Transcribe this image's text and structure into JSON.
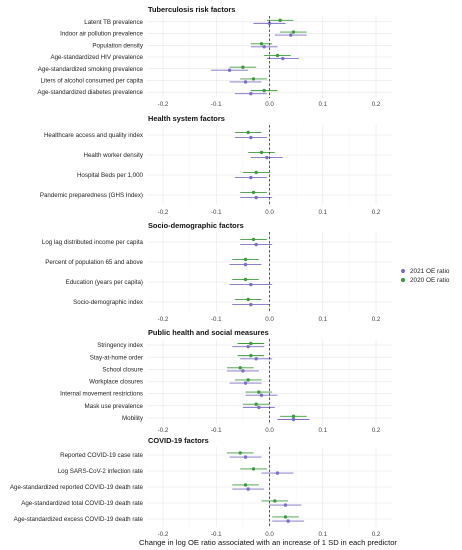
{
  "colors": {
    "2021": "#7b6fc2",
    "2020": "#3d9a3d"
  },
  "chart_data": {
    "type": "forest",
    "xlabel": "Change in log OE ratio associated with an increase of 1 SD in each predictor",
    "xlim": [
      -0.23,
      0.23
    ],
    "xticks": [
      -0.2,
      -0.1,
      0.0,
      0.1,
      0.2
    ],
    "xtick_labels": [
      "-0.2",
      "-0.1",
      "0.0",
      "0.1",
      "0.2"
    ],
    "reference_line": 0,
    "legend": {
      "position": "right",
      "entries": [
        {
          "key": "2021",
          "label": "2021 OE ratio"
        },
        {
          "key": "2020",
          "label": "2020 OE ratio"
        }
      ]
    },
    "panels": [
      {
        "title": "Tuberculosis risk factors",
        "rows": [
          {
            "label": "Latent TB prevalence",
            "y2020": {
              "est": 0.02,
              "lo": -0.005,
              "hi": 0.045
            },
            "y2021": {
              "est": 0.0,
              "lo": -0.03,
              "hi": 0.03
            }
          },
          {
            "label": "Indoor air pollution prevalence",
            "y2020": {
              "est": 0.045,
              "lo": 0.02,
              "hi": 0.07
            },
            "y2021": {
              "est": 0.04,
              "lo": 0.01,
              "hi": 0.07
            }
          },
          {
            "label": "Population density",
            "y2020": {
              "est": -0.015,
              "lo": -0.035,
              "hi": 0.005
            },
            "y2021": {
              "est": -0.01,
              "lo": -0.035,
              "hi": 0.015
            }
          },
          {
            "label": "Age-standardized HIV prevalence",
            "y2020": {
              "est": 0.015,
              "lo": -0.01,
              "hi": 0.04
            },
            "y2021": {
              "est": 0.025,
              "lo": -0.005,
              "hi": 0.055
            }
          },
          {
            "label": "Age-standardized smoking prevalence",
            "y2020": {
              "est": -0.05,
              "lo": -0.075,
              "hi": -0.025
            },
            "y2021": {
              "est": -0.075,
              "lo": -0.11,
              "hi": -0.04
            }
          },
          {
            "label": "Liters of alcohol consumed per capita",
            "y2020": {
              "est": -0.03,
              "lo": -0.055,
              "hi": -0.005
            },
            "y2021": {
              "est": -0.045,
              "lo": -0.075,
              "hi": -0.015
            }
          },
          {
            "label": "Age-standardized diabetes prevalence",
            "y2020": {
              "est": -0.01,
              "lo": -0.035,
              "hi": 0.015
            },
            "y2021": {
              "est": -0.035,
              "lo": -0.065,
              "hi": -0.005
            }
          }
        ]
      },
      {
        "title": "Health system factors",
        "rows": [
          {
            "label": "Healthcare access and quality index",
            "y2020": {
              "est": -0.04,
              "lo": -0.065,
              "hi": -0.015
            },
            "y2021": {
              "est": -0.035,
              "lo": -0.065,
              "hi": -0.005
            }
          },
          {
            "label": "Health worker density",
            "y2020": {
              "est": -0.015,
              "lo": -0.04,
              "hi": 0.01
            },
            "y2021": {
              "est": -0.005,
              "lo": -0.035,
              "hi": 0.025
            }
          },
          {
            "label": "Hospital Beds per 1,000",
            "y2020": {
              "est": -0.025,
              "lo": -0.05,
              "hi": 0.0
            },
            "y2021": {
              "est": -0.035,
              "lo": -0.065,
              "hi": -0.005
            }
          },
          {
            "label": "Pandemic preparedness (GHS Index)",
            "y2020": {
              "est": -0.03,
              "lo": -0.055,
              "hi": -0.005
            },
            "y2021": {
              "est": -0.025,
              "lo": -0.055,
              "hi": 0.005
            }
          }
        ]
      },
      {
        "title": "Socio-demographic factors",
        "rows": [
          {
            "label": "Log lag distributed income per capita",
            "y2020": {
              "est": -0.03,
              "lo": -0.055,
              "hi": -0.005
            },
            "y2021": {
              "est": -0.025,
              "lo": -0.055,
              "hi": 0.005
            }
          },
          {
            "label": "Percent of population 65 and above",
            "y2020": {
              "est": -0.045,
              "lo": -0.07,
              "hi": -0.02
            },
            "y2021": {
              "est": -0.045,
              "lo": -0.075,
              "hi": -0.015
            }
          },
          {
            "label": "Education (years per capita)",
            "y2020": {
              "est": -0.045,
              "lo": -0.07,
              "hi": -0.02
            },
            "y2021": {
              "est": -0.035,
              "lo": -0.075,
              "hi": 0.005
            }
          },
          {
            "label": "Socio-demographic index",
            "y2020": {
              "est": -0.04,
              "lo": -0.065,
              "hi": -0.015
            },
            "y2021": {
              "est": -0.035,
              "lo": -0.07,
              "hi": 0.0
            }
          }
        ]
      },
      {
        "title": "Public health and social measures",
        "rows": [
          {
            "label": "Stringency index",
            "y2020": {
              "est": -0.035,
              "lo": -0.06,
              "hi": -0.01
            },
            "y2021": {
              "est": -0.04,
              "lo": -0.07,
              "hi": -0.01
            }
          },
          {
            "label": "Stay-at-home order",
            "y2020": {
              "est": -0.035,
              "lo": -0.06,
              "hi": -0.01
            },
            "y2021": {
              "est": -0.025,
              "lo": -0.055,
              "hi": 0.005
            }
          },
          {
            "label": "School closure",
            "y2020": {
              "est": -0.055,
              "lo": -0.08,
              "hi": -0.03
            },
            "y2021": {
              "est": -0.05,
              "lo": -0.08,
              "hi": -0.02
            }
          },
          {
            "label": "Workplace closures",
            "y2020": {
              "est": -0.04,
              "lo": -0.065,
              "hi": -0.015
            },
            "y2021": {
              "est": -0.045,
              "lo": -0.075,
              "hi": -0.015
            }
          },
          {
            "label": "Internal movement restrictions",
            "y2020": {
              "est": -0.02,
              "lo": -0.045,
              "hi": 0.005
            },
            "y2021": {
              "est": -0.015,
              "lo": -0.045,
              "hi": 0.015
            }
          },
          {
            "label": "Mask use prevalence",
            "y2020": {
              "est": -0.025,
              "lo": -0.05,
              "hi": 0.0
            },
            "y2021": {
              "est": -0.02,
              "lo": -0.05,
              "hi": 0.01
            }
          },
          {
            "label": "Mobility",
            "y2020": {
              "est": 0.045,
              "lo": 0.02,
              "hi": 0.07
            },
            "y2021": {
              "est": 0.045,
              "lo": 0.015,
              "hi": 0.075
            }
          }
        ]
      },
      {
        "title": "COVID-19 factors",
        "rows": [
          {
            "label": "Reported COVID-19 case rate",
            "y2020": {
              "est": -0.055,
              "lo": -0.08,
              "hi": -0.03
            },
            "y2021": {
              "est": -0.045,
              "lo": -0.075,
              "hi": -0.015
            }
          },
          {
            "label": "Log SARS-CoV-2 infection rate",
            "y2020": {
              "est": -0.03,
              "lo": -0.055,
              "hi": -0.005
            },
            "y2021": {
              "est": 0.015,
              "lo": -0.015,
              "hi": 0.045
            }
          },
          {
            "label": "Age-standardized reported COVID-19 death rate",
            "y2020": {
              "est": -0.045,
              "lo": -0.07,
              "hi": -0.02
            },
            "y2021": {
              "est": -0.04,
              "lo": -0.07,
              "hi": -0.01
            }
          },
          {
            "label": "Age-standardized total COVID-19 death rate",
            "y2020": {
              "est": 0.01,
              "lo": -0.015,
              "hi": 0.035
            },
            "y2021": {
              "est": 0.03,
              "lo": 0.0,
              "hi": 0.06
            }
          },
          {
            "label": "Age-standardized excess COVID-19 death rate",
            "y2020": {
              "est": 0.03,
              "lo": 0.005,
              "hi": 0.055
            },
            "y2021": {
              "est": 0.035,
              "lo": 0.005,
              "hi": 0.065
            }
          }
        ]
      }
    ]
  }
}
